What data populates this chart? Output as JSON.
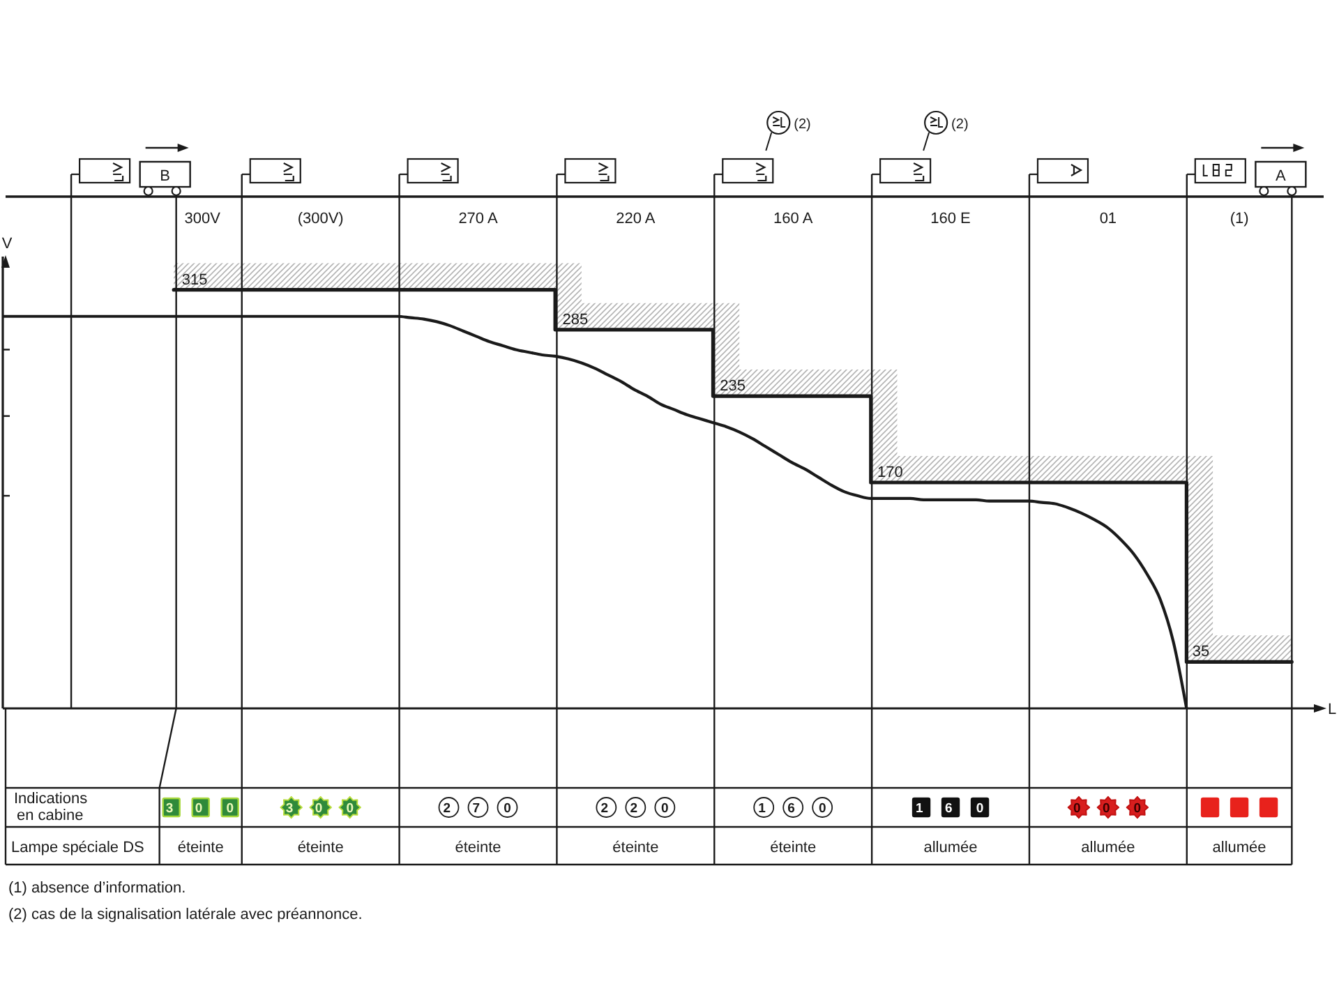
{
  "chart_data": {
    "type": "step",
    "xlabel": "L",
    "ylabel": "V",
    "categories": [
      null,
      null,
      null,
      null,
      null,
      null,
      null,
      null,
      null,
      null,
      null,
      null,
      null,
      null,
      null,
      "300V",
      null,
      null,
      null,
      null,
      null,
      null,
      null,
      null,
      "(300V)",
      null,
      null,
      null,
      null,
      null,
      null,
      null,
      null,
      null,
      null,
      null,
      "270 A",
      null,
      null,
      null,
      null,
      null,
      null,
      null,
      null,
      null,
      null,
      null,
      "220 A",
      null,
      null,
      null,
      null,
      null,
      null,
      null,
      null,
      null,
      null,
      null,
      "160 A",
      null,
      null,
      null,
      null,
      null,
      null,
      null,
      null,
      null,
      null,
      null,
      "160 E",
      null,
      null,
      null,
      null,
      null,
      null,
      null,
      null,
      null,
      null,
      null,
      "01",
      null,
      null,
      null,
      null,
      null,
      null,
      null,
      null,
      null,
      "(1)",
      null,
      null,
      null,
      null,
      null,
      null
    ],
    "ylim": [
      0,
      340
    ],
    "yticks": [
      {
        "value": 160,
        "label": null
      },
      {
        "value": 220,
        "label": null
      },
      {
        "value": 270,
        "label": null
      }
    ],
    "marker": "none",
    "series": [
      {
        "color": "#1a1a1a",
        "values": [
          null,
          null,
          null,
          null,
          null,
          null,
          null,
          null,
          null,
          null,
          null,
          null,
          null,
          315,
          315,
          315,
          315,
          315,
          315,
          315,
          315,
          315,
          315,
          315,
          315,
          315,
          315,
          315,
          315,
          315,
          315,
          315,
          315,
          315,
          315,
          315,
          315,
          315,
          315,
          315,
          315,
          315,
          285,
          285,
          285,
          285,
          285,
          285,
          285,
          285,
          285,
          285,
          285,
          285,
          235,
          235,
          235,
          235,
          235,
          235,
          235,
          235,
          235,
          235,
          235,
          235,
          170,
          170,
          170,
          170,
          170,
          170,
          170,
          170,
          170,
          170,
          170,
          170,
          170,
          170,
          170,
          170,
          170,
          170,
          170,
          170,
          170,
          170,
          170,
          170,
          35,
          35,
          35,
          35,
          35,
          35,
          35,
          35,
          35,
          null,
          null
        ],
        "lower": [
          null,
          null,
          null,
          null,
          null,
          null,
          null,
          null,
          null,
          null,
          null,
          null,
          null,
          315,
          315,
          315,
          315,
          315,
          315,
          315,
          315,
          315,
          315,
          315,
          315,
          315,
          315,
          315,
          315,
          315,
          315,
          315,
          315,
          315,
          315,
          315,
          315,
          315,
          315,
          315,
          315,
          315,
          285,
          285,
          285,
          285,
          285,
          285,
          285,
          285,
          285,
          285,
          285,
          285,
          235,
          235,
          235,
          235,
          235,
          235,
          235,
          235,
          235,
          235,
          235,
          235,
          170,
          170,
          170,
          170,
          170,
          170,
          170,
          170,
          170,
          170,
          170,
          170,
          170,
          170,
          170,
          170,
          170,
          170,
          170,
          170,
          170,
          170,
          170,
          170,
          35,
          35,
          35,
          35,
          35,
          35,
          35,
          35,
          35,
          null,
          null
        ],
        "upper": [
          null,
          null,
          null,
          null,
          null,
          null,
          null,
          null,
          null,
          null,
          null,
          null,
          null,
          335,
          335,
          335,
          335,
          335,
          335,
          335,
          335,
          335,
          335,
          335,
          335,
          335,
          335,
          335,
          335,
          335,
          335,
          335,
          335,
          335,
          335,
          335,
          335,
          335,
          335,
          335,
          335,
          335,
          335,
          335,
          305,
          305,
          305,
          305,
          305,
          305,
          305,
          305,
          305,
          305,
          305,
          305,
          255,
          255,
          255,
          255,
          255,
          255,
          255,
          255,
          255,
          255,
          255,
          255,
          190,
          190,
          190,
          190,
          190,
          190,
          190,
          190,
          190,
          190,
          190,
          190,
          190,
          190,
          190,
          190,
          190,
          190,
          190,
          190,
          190,
          190,
          190,
          190,
          55,
          55,
          55,
          55,
          55,
          55,
          55,
          null,
          null
        ],
        "value_labels": [
          null,
          null,
          null,
          null,
          null,
          null,
          null,
          null,
          null,
          null,
          null,
          null,
          null,
          "315",
          null,
          null,
          null,
          null,
          null,
          null,
          null,
          null,
          null,
          null,
          null,
          null,
          null,
          null,
          null,
          null,
          null,
          null,
          null,
          null,
          null,
          null,
          null,
          null,
          null,
          null,
          null,
          null,
          "285",
          null,
          null,
          null,
          null,
          null,
          null,
          null,
          null,
          null,
          null,
          null,
          "235",
          null,
          null,
          null,
          null,
          null,
          null,
          null,
          null,
          null,
          null,
          null,
          "170",
          null,
          null,
          null,
          null,
          null,
          null,
          null,
          null,
          null,
          null,
          null,
          null,
          null,
          null,
          null,
          null,
          null,
          null,
          null,
          null,
          null,
          null,
          null,
          "35",
          null,
          null,
          null,
          null,
          null,
          null,
          null,
          null,
          null,
          null
        ]
      },
      {
        "type": "line",
        "color": "#1a1a1a",
        "values": [
          295,
          295,
          295,
          295,
          295,
          295,
          295,
          295,
          295,
          295,
          295,
          295,
          295,
          295,
          295,
          295,
          295,
          295,
          295,
          295,
          295,
          295,
          295,
          295,
          295,
          295,
          295,
          295,
          295,
          295,
          295,
          294,
          293,
          291,
          288,
          284,
          280,
          276,
          273,
          270,
          268,
          266,
          265,
          263,
          260,
          256,
          251,
          246,
          240,
          235,
          229,
          225,
          221,
          218,
          215,
          212,
          208,
          203,
          197,
          191,
          185,
          180,
          174,
          168,
          163,
          160,
          158,
          158,
          158,
          158,
          157,
          157,
          157,
          157,
          157,
          156,
          156,
          156,
          156,
          155,
          154,
          151,
          147,
          142,
          136,
          127,
          116,
          101,
          82,
          50,
          0,
          null,
          null,
          null,
          null,
          null,
          null,
          null,
          null,
          null,
          null
        ]
      }
    ],
    "annotations": [
      "B",
      "A",
      "(2)",
      "(2)",
      "Indications en cabine",
      "Lampe spéciale DS",
      "3 0 0",
      "3 0 0",
      "2 7 0",
      "2 2 0",
      "1 6 0",
      "1 6 0",
      "0 0 0",
      "éteinte",
      "éteinte",
      "éteinte",
      "éteinte",
      "éteinte",
      "allumée",
      "allumée",
      "allumée",
      "(1) absence d’information.",
      "(2) cas de la signalisation latérale avec préannonce."
    ]
  }
}
